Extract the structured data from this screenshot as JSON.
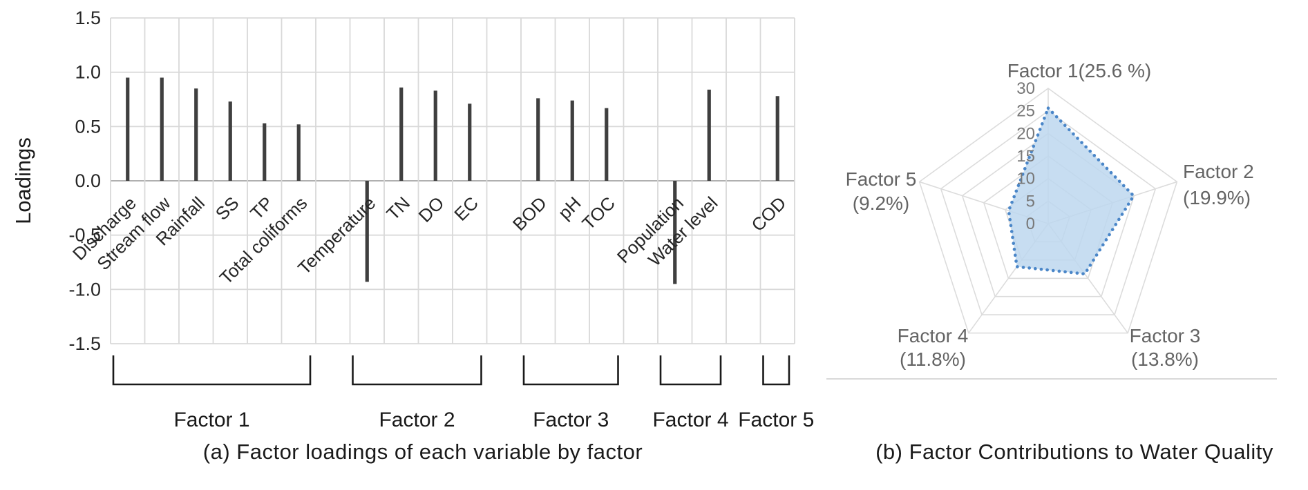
{
  "figure": {
    "caption_a": "(a) Factor loadings of each variable by factor",
    "caption_b": "(b) Factor Contributions to Water Quality"
  },
  "colors": {
    "bar": "#3f3f3f",
    "grid": "#d9d9d9",
    "zero_axis": "#b0b0b0",
    "bracket": "#1a1a1a",
    "text": "#262626",
    "radar_grid": "#dcdcdc",
    "radar_fill": "#bdd7ee",
    "radar_border": "#4a86c8",
    "radar_label": "#646464",
    "ring_label": "#787878",
    "divider": "#d9d9d9"
  },
  "chart_data": [
    {
      "type": "bar",
      "title": "",
      "xlabel": "",
      "ylabel": "Loadings",
      "ylim": [
        -1.5,
        1.5
      ],
      "grid": true,
      "ytick_labels": [
        "1.5",
        "1.0",
        "0.5",
        "0.0",
        "-0.5",
        "-1.0",
        "-1.5"
      ],
      "yticks": [
        1.5,
        1.0,
        0.5,
        0.0,
        -0.5,
        -1.0,
        -1.5
      ],
      "categories": [
        "Discharge",
        "Stream flow",
        "Rainfall",
        "SS",
        "TP",
        "Total coliforms",
        "Temperature",
        "TN",
        "DO",
        "EC",
        "BOD",
        "pH",
        "TOC",
        "Population",
        "Water level",
        "COD"
      ],
      "values": [
        0.95,
        0.95,
        0.85,
        0.73,
        0.53,
        0.52,
        -0.93,
        0.86,
        0.83,
        0.71,
        0.76,
        0.74,
        0.67,
        -0.95,
        0.84,
        0.78
      ],
      "column_slots": [
        1,
        2,
        3,
        4,
        5,
        6,
        8,
        9,
        10,
        11,
        13,
        14,
        15,
        17,
        18,
        20
      ],
      "n_columns": 20,
      "groups": [
        {
          "label": "Factor 1",
          "from_col": 1,
          "to_col": 6
        },
        {
          "label": "Factor 2",
          "from_col": 8,
          "to_col": 11
        },
        {
          "label": "Factor 3",
          "from_col": 13,
          "to_col": 15
        },
        {
          "label": "Factor 4",
          "from_col": 17,
          "to_col": 18
        },
        {
          "label": "Factor 5",
          "from_col": 20,
          "to_col": 20
        }
      ]
    },
    {
      "type": "radar",
      "rmax": 30,
      "ring_step": 5,
      "ring_labels": [
        "30",
        "25",
        "20",
        "15",
        "10",
        "5",
        "0"
      ],
      "legend_position": "none",
      "axes": [
        {
          "label": "Factor 1(25.6 %)",
          "sub": "",
          "value": 25.6
        },
        {
          "label": "Factor 2",
          "sub": "(19.9%)",
          "value": 19.9
        },
        {
          "label": "Factor 3",
          "sub": "(13.8%)",
          "value": 13.8
        },
        {
          "label": "Factor 4",
          "sub": "(11.8%)",
          "value": 11.8
        },
        {
          "label": "Factor 5",
          "sub": "(9.2%)",
          "value": 9.2
        }
      ]
    }
  ]
}
